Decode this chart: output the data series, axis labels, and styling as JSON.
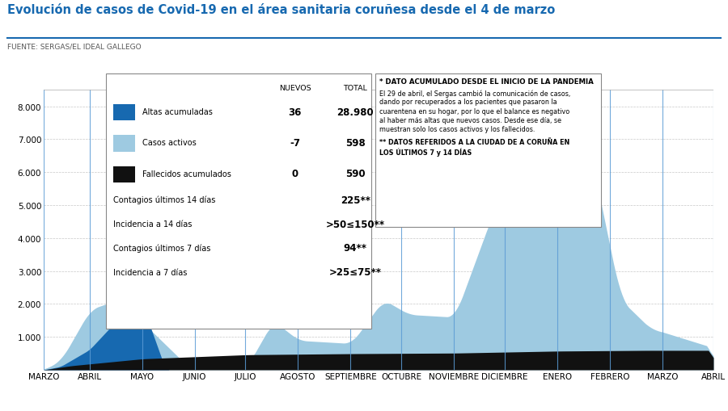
{
  "title": "Evolución de casos de Covid-19 en el área sanitaria coruñesa desde el 4 de marzo",
  "subtitle": "FUENTE: SERGAS/EL IDEAL GALLEGO",
  "title_color": "#1769b0",
  "subtitle_color": "#555555",
  "months": [
    "MARZO",
    "ABRIL",
    "MAYO",
    "JUNIO",
    "JULIO",
    "AGOSTO",
    "SEPTIEMBRE",
    "OCTUBRE",
    "NOVIEMBRE",
    "DICIEMBRE",
    "ENERO",
    "FEBRERO",
    "MARZO",
    "ABRIL"
  ],
  "month_positions": [
    0,
    27,
    58,
    89,
    119,
    150,
    181,
    211,
    242,
    272,
    303,
    334,
    365,
    395
  ],
  "n_points": 396,
  "ylim": [
    0,
    8500
  ],
  "yticks": [
    1000,
    2000,
    3000,
    4000,
    5000,
    6000,
    7000,
    8000
  ],
  "color_altas": "#1769b0",
  "color_activos": "#9ecae1",
  "color_fallecidos": "#111111",
  "color_vline": "#5b9bd5",
  "bg_color": "#ffffff",
  "grid_color": "#c8c8c8",
  "legend_nuevos": "NUEVOS",
  "legend_total": "TOTAL",
  "legend_altas_label": "Altas acumuladas",
  "legend_altas_nuevos": "36",
  "legend_altas_total": "28.980",
  "legend_activos_label": "Casos activos",
  "legend_activos_nuevos": "-7",
  "legend_activos_total": "598",
  "legend_fallecidos_label": "Fallecidos acumulados",
  "legend_fallecidos_nuevos": "0",
  "legend_fallecidos_total": "590",
  "legend_contagios14": "Contagios últimos 14 días",
  "legend_contagios14_val": "225**",
  "legend_incidencia14": "Incidencia a 14 días",
  "legend_incidencia14_val": ">50≤150**",
  "legend_contagios7": "Contagios últimos 7 días",
  "legend_contagios7_val": "94**",
  "legend_incidencia7": "Incidencia a 7 días",
  "legend_incidencia7_val": ">25≤75**",
  "note_title": "* DATO ACUMULADO DESDE EL INICIO DE LA PANDEMIA",
  "note_line1": "El 29 de abril, el Sergas cambió la comunicación de casos,",
  "note_line2": "dando por recuperados a los pacientes que pasaron la",
  "note_line3": "cuarentena en su hogar, por lo que el balance es negativo",
  "note_line4": "al haber más altas que nuevos casos. Desde ese día, se",
  "note_line5": "muestran solo los casos activos y los fallecidos.",
  "note_line6": "** DATOS REFERIDOS A LA CIUDAD DE A CORUÑA EN",
  "note_line7": "LOS ÚLTIMOS 7 y 14 DÍAS"
}
